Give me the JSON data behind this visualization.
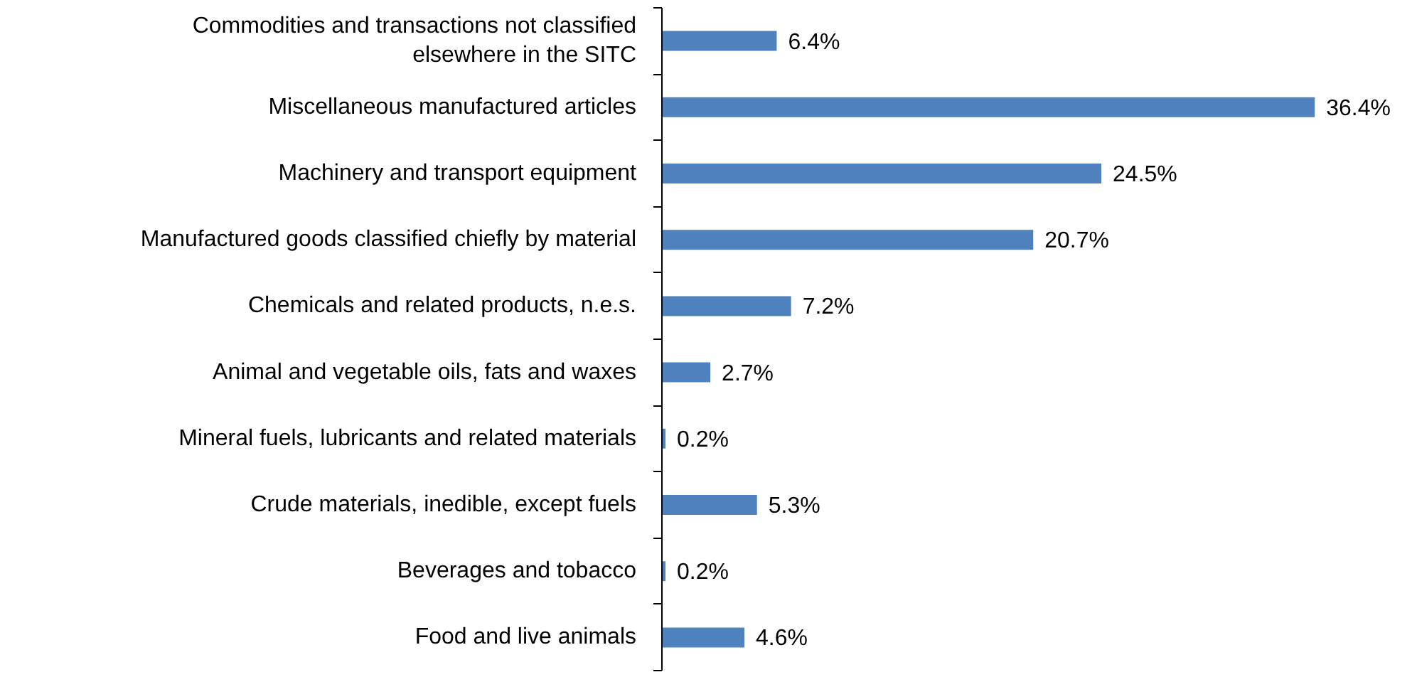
{
  "chart_data": {
    "type": "bar",
    "orientation": "horizontal",
    "categories": [
      "Commodities and transactions not classified elsewhere in the SITC",
      "Miscellaneous manufactured articles",
      "Machinery and transport equipment",
      "Manufactured goods classified chiefly by material",
      "Chemicals and related products, n.e.s.",
      "Animal and vegetable oils, fats and waxes",
      "Mineral fuels, lubricants and related materials",
      "Crude materials, inedible, except fuels",
      "Beverages and tobacco",
      "Food and live animals"
    ],
    "values": [
      6.4,
      36.4,
      24.5,
      20.7,
      7.2,
      2.7,
      0.2,
      5.3,
      0.2,
      4.6
    ],
    "value_labels": [
      "6.4%",
      "36.4%",
      "24.5%",
      "20.7%",
      "7.2%",
      "2.7%",
      "0.2%",
      "5.3%",
      "0.2%",
      "4.6%"
    ],
    "color": "#4f81bd"
  }
}
